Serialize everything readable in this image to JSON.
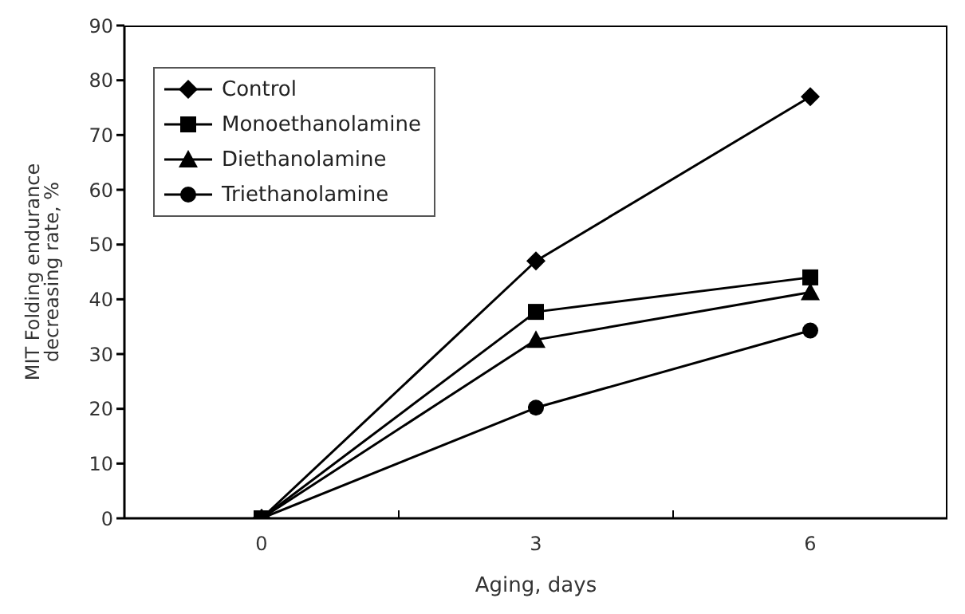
{
  "chart_data": {
    "type": "line",
    "xlabel": "Aging, days",
    "ylabel": "MIT Folding endurance decreasing rate, %",
    "categories": [
      "0",
      "3",
      "6"
    ],
    "ylim": [
      0,
      90
    ],
    "yticks": [
      0,
      10,
      20,
      30,
      40,
      50,
      60,
      70,
      80,
      90
    ],
    "grid": false,
    "legend": "top left",
    "line_style": "solid",
    "series": [
      {
        "name": "Control",
        "color": "#000000",
        "marker": "diamond",
        "values": [
          0,
          47,
          77
        ]
      },
      {
        "name": "Monoethanolamine",
        "color": "#000000",
        "marker": "square",
        "values": [
          0,
          37.7,
          44
        ]
      },
      {
        "name": "Diethanolamine",
        "color": "#000000",
        "marker": "triangle",
        "values": [
          0,
          32.6,
          41.3
        ]
      },
      {
        "name": "Triethanolamine",
        "color": "#000000",
        "marker": "circle",
        "values": [
          0,
          20.2,
          34.3
        ]
      }
    ]
  }
}
